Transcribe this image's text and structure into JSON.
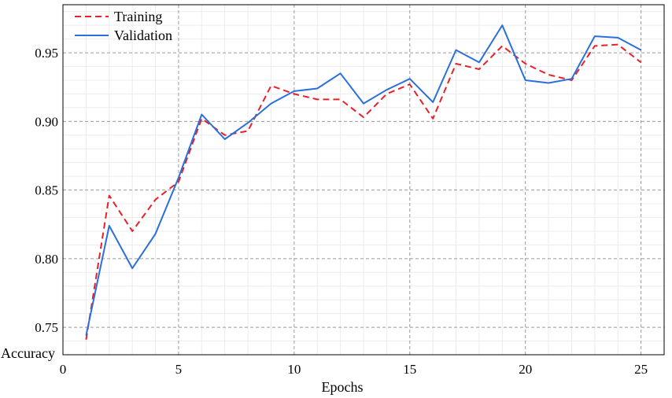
{
  "chart_data": {
    "type": "line",
    "xlabel": "Epochs",
    "ylabel": "Accuracy",
    "xlim": [
      0,
      26
    ],
    "ylim": [
      0.73,
      0.985
    ],
    "x_ticks": [
      "0",
      "5",
      "10",
      "15",
      "20",
      "25"
    ],
    "y_ticks": [
      "0.75",
      "0.80",
      "0.85",
      "0.90",
      "0.95"
    ],
    "grid": true,
    "legend_position": "top-left",
    "x": [
      1,
      2,
      3,
      4,
      5,
      6,
      7,
      8,
      9,
      10,
      11,
      12,
      13,
      14,
      15,
      16,
      17,
      18,
      19,
      20,
      21,
      22,
      23,
      24,
      25
    ],
    "series": [
      {
        "name": "Training",
        "color": "#e8202a",
        "dash": true,
        "values": [
          0.741,
          0.846,
          0.82,
          0.843,
          0.856,
          0.902,
          0.89,
          0.893,
          0.926,
          0.92,
          0.916,
          0.916,
          0.903,
          0.92,
          0.927,
          0.902,
          0.942,
          0.938,
          0.955,
          0.942,
          0.934,
          0.93,
          0.955,
          0.956,
          0.943
        ]
      },
      {
        "name": "Validation",
        "color": "#2a6fdb",
        "dash": false,
        "values": [
          0.744,
          0.824,
          0.793,
          0.818,
          0.859,
          0.905,
          0.887,
          0.899,
          0.913,
          0.922,
          0.924,
          0.935,
          0.913,
          0.923,
          0.931,
          0.914,
          0.952,
          0.943,
          0.97,
          0.93,
          0.928,
          0.931,
          0.962,
          0.961,
          0.952
        ]
      }
    ]
  }
}
